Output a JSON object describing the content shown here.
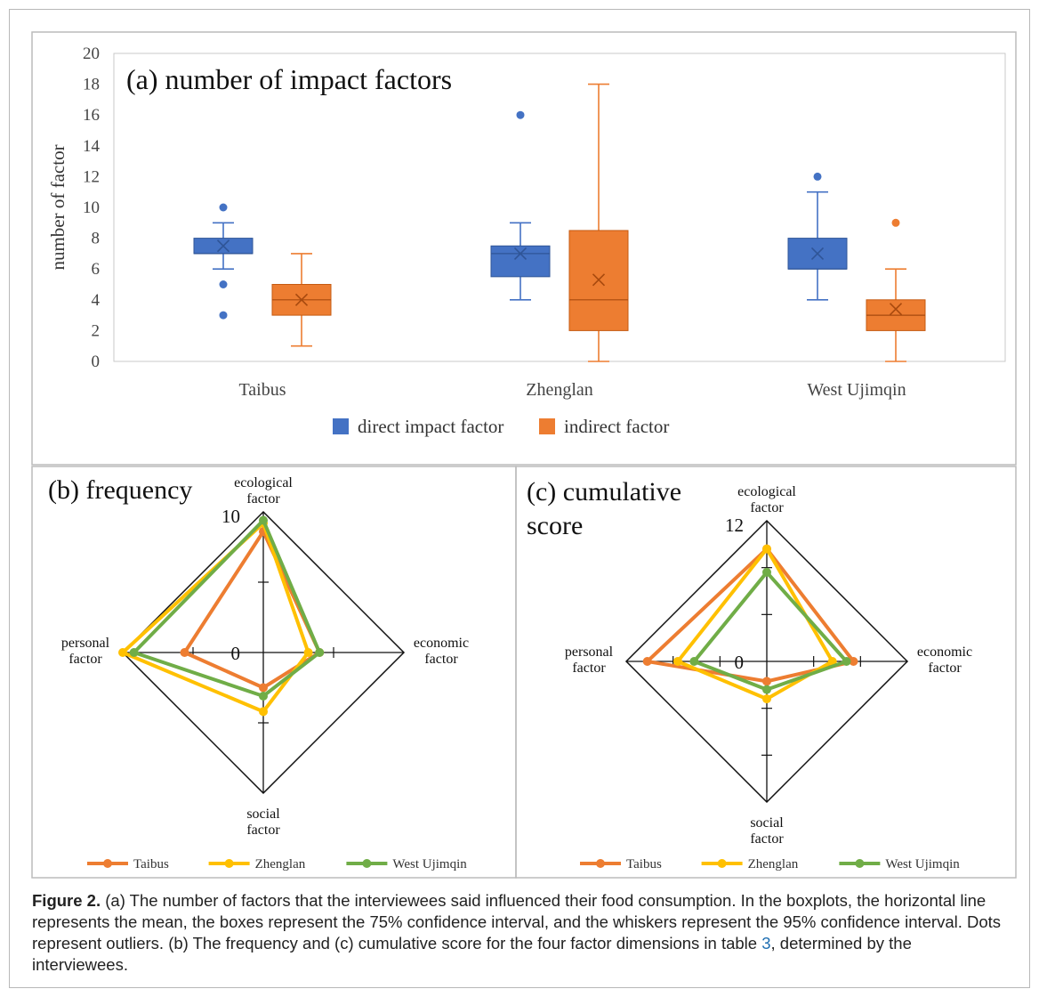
{
  "caption": {
    "figure_label": "Figure 2.",
    "text_before_ref": " (a) The number of factors that the interviewees said influenced their food consumption. In the boxplots, the horizontal line represents the mean, the boxes represent the 75% confidence interval, and the whiskers represent the 95% confidence interval. Dots represent outliers. (b) The frequency and (c) cumulative score for the four factor dimensions in table ",
    "ref": "3",
    "text_after_ref": ", determined by the interviewees."
  },
  "chart_data": [
    {
      "type": "box",
      "title": "(a) number of impact factors",
      "ylabel": "number of  factor",
      "xlabel": "",
      "ylim": [
        0,
        20
      ],
      "yticks": [
        0,
        2,
        4,
        6,
        8,
        10,
        12,
        14,
        16,
        18,
        20
      ],
      "categories": [
        "Taibus",
        "Zhenglan",
        "West Ujimqin"
      ],
      "legend_position": "bottom",
      "series": [
        {
          "name": "direct impact factor",
          "color": "#4472c4",
          "boxes": [
            {
              "whisker_low": 6,
              "q1": 7,
              "median": 7,
              "q3": 8,
              "whisker_high": 9,
              "mean": 7.5,
              "outliers": [
                3,
                5,
                10
              ]
            },
            {
              "whisker_low": 4,
              "q1": 5.5,
              "median": 7,
              "q3": 7.5,
              "whisker_high": 9,
              "mean": 7,
              "outliers": [
                16
              ]
            },
            {
              "whisker_low": 4,
              "q1": 6,
              "median": 6,
              "q3": 8,
              "whisker_high": 11,
              "mean": 7,
              "outliers": [
                12
              ]
            }
          ]
        },
        {
          "name": "indirect factor",
          "color": "#ed7d31",
          "boxes": [
            {
              "whisker_low": 1,
              "q1": 3,
              "median": 4,
              "q3": 5,
              "whisker_high": 7,
              "mean": 4,
              "outliers": []
            },
            {
              "whisker_low": 0,
              "q1": 2,
              "median": 4,
              "q3": 8.5,
              "whisker_high": 18,
              "mean": 5.3,
              "outliers": []
            },
            {
              "whisker_low": 0,
              "q1": 2,
              "median": 3,
              "q3": 4,
              "whisker_high": 6,
              "mean": 3.4,
              "outliers": [
                9
              ]
            }
          ]
        }
      ]
    },
    {
      "type": "radar",
      "title": "(b) frequency",
      "axes": [
        "ecological factor",
        "economic factor",
        "social factor",
        "personal factor"
      ],
      "max": 10,
      "max_label": "10",
      "min_label": "0",
      "legend_position": "bottom",
      "series": [
        {
          "name": "Taibus",
          "color": "#ed7d31",
          "values": [
            8.6,
            4.0,
            2.5,
            5.6
          ]
        },
        {
          "name": "Zhenglan",
          "color": "#ffc000",
          "values": [
            9.2,
            3.2,
            4.2,
            10.0
          ]
        },
        {
          "name": "West Ujimqin",
          "color": "#70ad47",
          "values": [
            9.4,
            4.0,
            3.1,
            9.2
          ]
        }
      ]
    },
    {
      "type": "radar",
      "title": "(c) cumulative\nscore",
      "axes": [
        "ecological factor",
        "economic factor",
        "social factor",
        "personal factor"
      ],
      "max": 12,
      "max_label": "12",
      "min_label": "0",
      "legend_position": "bottom",
      "series": [
        {
          "name": "Taibus",
          "color": "#ed7d31",
          "values": [
            9.6,
            7.4,
            1.7,
            10.2
          ]
        },
        {
          "name": "Zhenglan",
          "color": "#ffc000",
          "values": [
            9.6,
            5.6,
            3.2,
            7.6
          ]
        },
        {
          "name": "West Ujimqin",
          "color": "#70ad47",
          "values": [
            7.6,
            6.8,
            2.4,
            6.2
          ]
        }
      ]
    }
  ]
}
